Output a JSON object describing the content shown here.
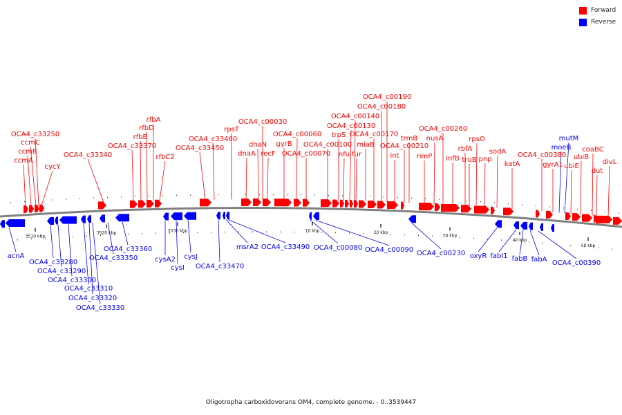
{
  "caption": "Oligotropha carboxidovorans OM4, complete genome. - 0..3539447",
  "legend": [
    {
      "label": "Forward",
      "color": "#ff0000"
    },
    {
      "label": "Reverse",
      "color": "#0000ff"
    }
  ],
  "colors": {
    "forward": "#ff0000",
    "reverse": "#0000ff",
    "backbone": "#808080"
  },
  "ticks": [
    "3510 kbp",
    "3520 kbp",
    "3530 kbp",
    "10 kbp",
    "20 kbp",
    "30 kbp",
    "40 kbp",
    "50 kbp"
  ],
  "genes": {
    "forward": [
      "ccmA",
      "ccmB",
      "ccmC",
      "OCA4_c33250",
      "cycY",
      "OCA4_c33340",
      "rfbC2",
      "rfbB",
      "rfbD",
      "rfbA",
      "OCA4_c33370",
      "OCA4_c33450",
      "OCA4_c33460",
      "rpsT",
      "dnaA",
      "dnaN",
      "recF",
      "gyrB",
      "OCA4_c00030",
      "OCA4_c00060",
      "OCA4_c00070",
      "OCA4_c00100",
      "trpS",
      "nfu",
      "fur",
      "OCA4_c00130",
      "OCA4_c00140",
      "miaB",
      "OCA4_c00170",
      "OCA4_c00180",
      "OCA4_c00190",
      "int",
      "OCA4_c00210",
      "trmB",
      "rimP",
      "nusA",
      "OCA4_c00260",
      "infB",
      "rbfA",
      "truB",
      "pnp",
      "rpsO",
      "sodA",
      "katA",
      "OCA4_c00380",
      "gyrA1",
      "ubiE",
      "ubiB",
      "coaBC",
      "dut",
      "divL"
    ],
    "reverse": [
      "acnA",
      "OCA4_c33280",
      "OCA4_c33290",
      "OCA4_c33300",
      "OCA4_c33310",
      "OCA4_c33320",
      "OCA4_c33330",
      "OCA4_c33350",
      "OCA4_c33360",
      "cysA2",
      "cysI",
      "cysJ",
      "OCA4_c33470",
      "msrA2",
      "OCA4_c33490",
      "OCA4_c00080",
      "OCA4_c00090",
      "OCA4_c00230",
      "oxyR",
      "fabI1",
      "fabB",
      "fabA",
      "OCA4_c00390",
      "moeB",
      "mutM"
    ]
  }
}
